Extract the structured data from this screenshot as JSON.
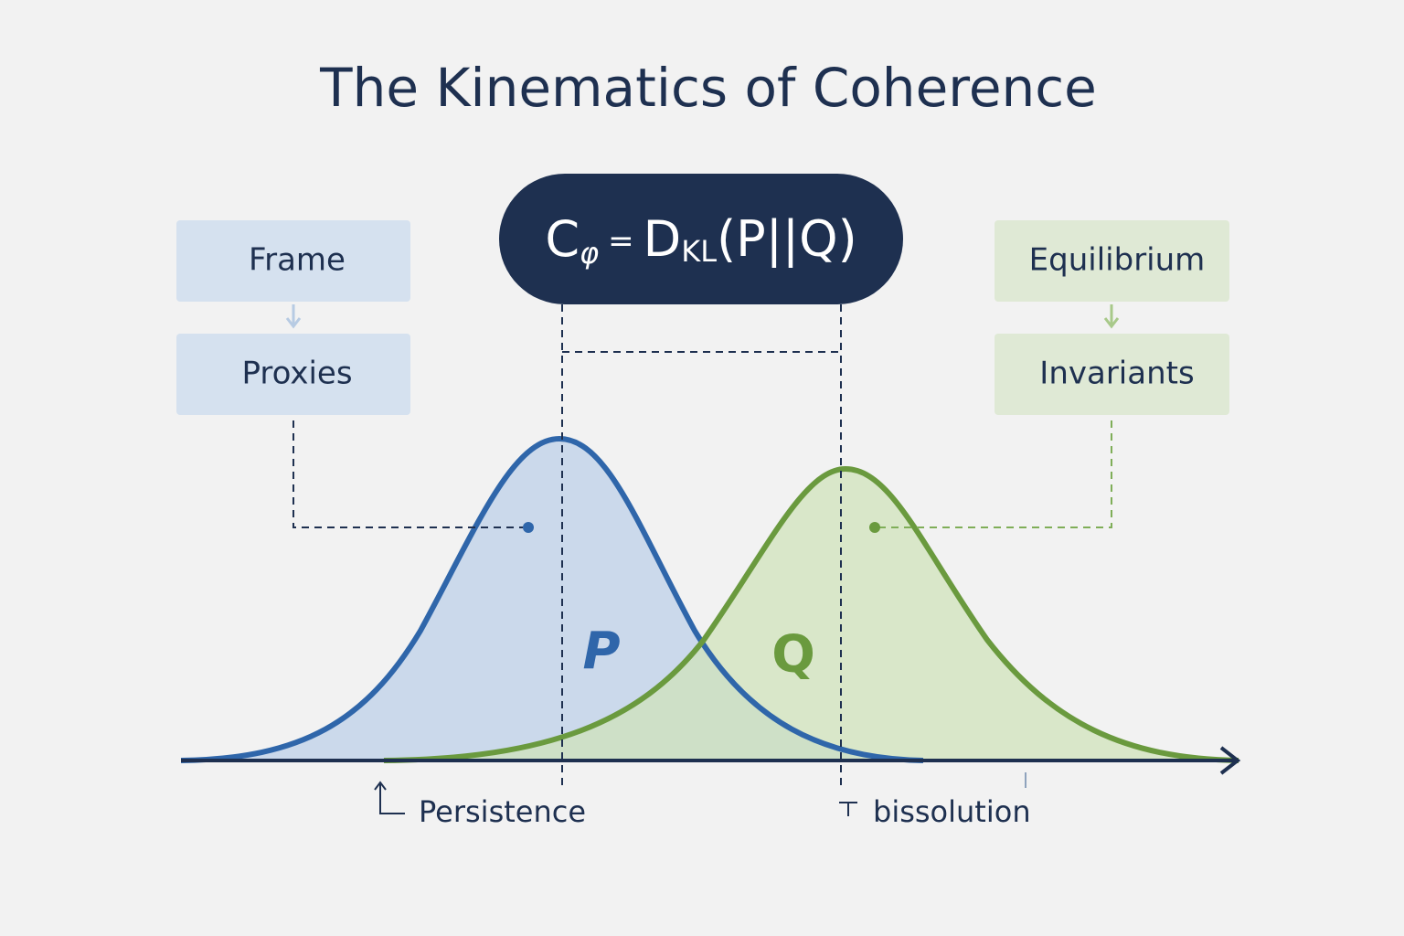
{
  "title": "The Kinematics of Coherence",
  "formula": {
    "c": "C",
    "c_sub": "φ",
    "equals": "=",
    "d": "D",
    "d_sub": "KL",
    "args": "(P||Q)"
  },
  "left_boxes": [
    "Frame",
    "Proxies"
  ],
  "right_boxes": [
    "Equilibrium",
    "Invariants"
  ],
  "curves": {
    "p": "P",
    "q": "Q"
  },
  "axis_labels": {
    "left": "Persistence",
    "right": "bissolution"
  }
}
